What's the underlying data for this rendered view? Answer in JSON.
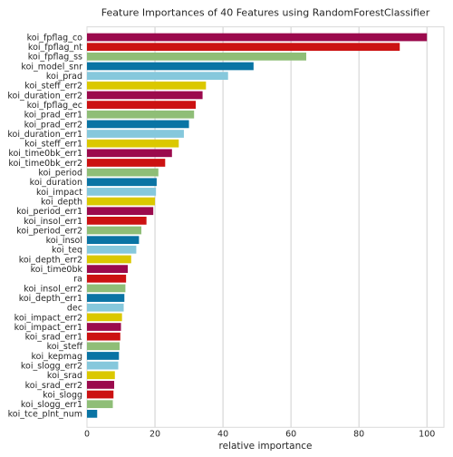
{
  "chart_data": {
    "type": "bar",
    "orientation": "horizontal",
    "title": "Feature Importances of 40 Features using RandomForestClassifier",
    "xlabel": "relative importance",
    "ylabel": "",
    "xlim": [
      0,
      105
    ],
    "xticks": [
      0,
      20,
      40,
      60,
      80,
      100
    ],
    "grid": "vertical",
    "legend": "none",
    "palette": [
      "#9b0a4d",
      "#cc1212",
      "#8fbe77",
      "#0a74a4",
      "#86c8dc",
      "#dbc800"
    ],
    "categories": [
      "koi_fpflag_co",
      "koi_fpflag_nt",
      "koi_fpflag_ss",
      "koi_model_snr",
      "koi_prad",
      "koi_steff_err2",
      "koi_duration_err2",
      "koi_fpflag_ec",
      "koi_prad_err1",
      "koi_prad_err2",
      "koi_duration_err1",
      "koi_steff_err1",
      "koi_time0bk_err1",
      "koi_time0bk_err2",
      "koi_period",
      "koi_duration",
      "koi_impact",
      "koi_depth",
      "koi_period_err1",
      "koi_insol_err1",
      "koi_period_err2",
      "koi_insol",
      "koi_teq",
      "koi_depth_err2",
      "koi_time0bk",
      "ra",
      "koi_insol_err2",
      "koi_depth_err1",
      "dec",
      "koi_impact_err2",
      "koi_impact_err1",
      "koi_srad_err1",
      "koi_steff",
      "koi_kepmag",
      "koi_slogg_err2",
      "koi_srad",
      "koi_srad_err2",
      "koi_slogg",
      "koi_slogg_err1",
      "koi_tce_plnt_num"
    ],
    "values": [
      100,
      92,
      64.5,
      49,
      41.5,
      35,
      34,
      32,
      31.5,
      30,
      28.5,
      27,
      25,
      23,
      21,
      20.5,
      20.3,
      20,
      19.5,
      17.5,
      16,
      15.3,
      14.5,
      13,
      12,
      11.5,
      11.3,
      11,
      10.8,
      10.3,
      10,
      9.8,
      9.6,
      9.4,
      9.2,
      8.2,
      8,
      7.8,
      7.6,
      3
    ]
  }
}
